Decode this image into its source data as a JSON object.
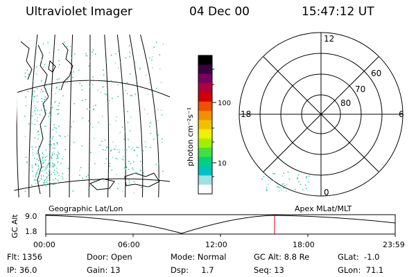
{
  "header": {
    "title": "Ultraviolet Imager",
    "date": "04 Dec 00",
    "time": "15:47:12 UT"
  },
  "colorbar": {
    "unit_label": "photon cm⁻²s⁻¹",
    "ticks": [
      "100",
      "10"
    ],
    "colors": [
      "#000000",
      "#3a0040",
      "#7a0060",
      "#b00040",
      "#d00000",
      "#f05000",
      "#f09000",
      "#f0c000",
      "#f0f000",
      "#a0f000",
      "#40e040",
      "#00d080",
      "#00c0c0",
      "#a0e0e0",
      "#ffffff"
    ]
  },
  "geo_panel": {
    "projection": "Geographic Lat/Lon",
    "aurora_color": "#33ccaa",
    "coast_color": "#000000"
  },
  "polar_panel": {
    "projection": "Apex MLat/MLT",
    "mlt_labels": {
      "top": "12",
      "left": "18",
      "right": "6",
      "bottom": "0"
    },
    "lat_labels": [
      "60",
      "70",
      "80"
    ]
  },
  "altitude_plot": {
    "ylabel": "GC Alt",
    "yticks": [
      "9.0",
      "1.8"
    ],
    "xticks": [
      "00:00",
      "06:00",
      "12:00",
      "18:00",
      "23:59"
    ],
    "current_time_marker": "15:47",
    "marker_color": "#cc0000"
  },
  "status": {
    "flt": "Flt: 1356",
    "ip": "IP: 36.0",
    "door": "Door: Open",
    "gain": "Gain: 13",
    "mode": "Mode: Normal",
    "dsp": "Dsp:     1.7",
    "gc_alt": "GC Alt: 8.8 Re",
    "seq": "Seq: 13",
    "glat": "GLat:  -1.0",
    "glon": "GLon:  71.1"
  }
}
